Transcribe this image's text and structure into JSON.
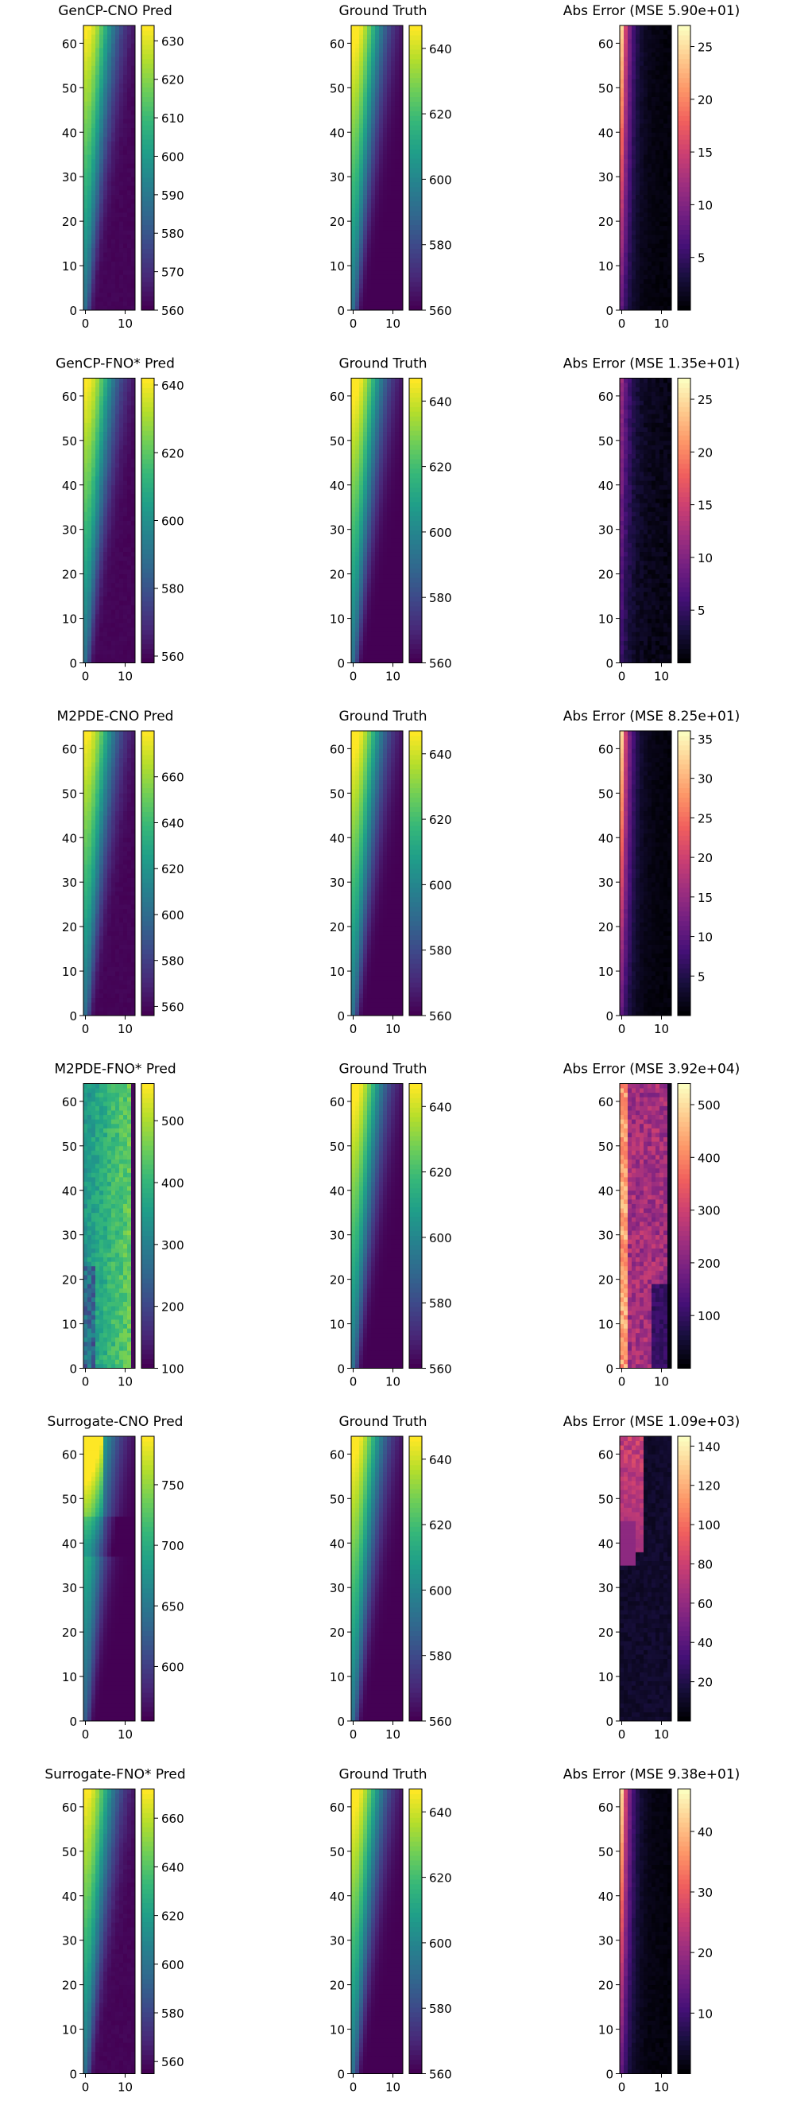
{
  "figure": {
    "colormaps": {
      "viridis": [
        "#440154",
        "#482878",
        "#3e4989",
        "#31688e",
        "#26828e",
        "#1f9e89",
        "#35b779",
        "#6ece58",
        "#b5de2b",
        "#fde725"
      ],
      "magma": [
        "#000004",
        "#180f3e",
        "#451077",
        "#721f81",
        "#9f2f7f",
        "#cd4071",
        "#f1605d",
        "#fd9567",
        "#feca8d",
        "#fcfdbf"
      ]
    }
  },
  "chart_data": [
    {
      "type": "heatmap",
      "title": "GenCP-CNO Pred",
      "cmap": "viridis",
      "xticks": [
        0,
        10
      ],
      "yticks": [
        0,
        10,
        20,
        30,
        40,
        50,
        60
      ],
      "xlim": [
        0,
        13
      ],
      "ylim": [
        0,
        64
      ],
      "cbar_range": [
        560,
        634
      ],
      "cbar_ticks": [
        560,
        570,
        580,
        590,
        600,
        610,
        620,
        630
      ],
      "pattern": "pred"
    },
    {
      "type": "heatmap",
      "title": "Ground Truth",
      "cmap": "viridis",
      "xticks": [
        0,
        10
      ],
      "yticks": [
        0,
        10,
        20,
        30,
        40,
        50,
        60
      ],
      "xlim": [
        0,
        13
      ],
      "ylim": [
        0,
        64
      ],
      "cbar_range": [
        560,
        647
      ],
      "cbar_ticks": [
        560,
        580,
        600,
        620,
        640
      ],
      "pattern": "truth"
    },
    {
      "type": "heatmap",
      "title": "Abs Error (MSE 5.90e+01)",
      "cmap": "magma",
      "xticks": [
        0,
        10
      ],
      "yticks": [
        0,
        10,
        20,
        30,
        40,
        50,
        60
      ],
      "xlim": [
        0,
        13
      ],
      "ylim": [
        0,
        64
      ],
      "cbar_range": [
        0,
        27
      ],
      "cbar_ticks": [
        5,
        10,
        15,
        20,
        25
      ],
      "pattern": "error_left"
    },
    {
      "type": "heatmap",
      "title": "GenCP-FNO* Pred",
      "cmap": "viridis",
      "xticks": [
        0,
        10
      ],
      "yticks": [
        0,
        10,
        20,
        30,
        40,
        50,
        60
      ],
      "xlim": [
        0,
        13
      ],
      "ylim": [
        0,
        64
      ],
      "cbar_range": [
        558,
        642
      ],
      "cbar_ticks": [
        560,
        580,
        600,
        620,
        640
      ],
      "pattern": "pred"
    },
    {
      "type": "heatmap",
      "title": "Ground Truth",
      "cmap": "viridis",
      "xticks": [
        0,
        10
      ],
      "yticks": [
        0,
        10,
        20,
        30,
        40,
        50,
        60
      ],
      "xlim": [
        0,
        13
      ],
      "ylim": [
        0,
        64
      ],
      "cbar_range": [
        560,
        647
      ],
      "cbar_ticks": [
        560,
        580,
        600,
        620,
        640
      ],
      "pattern": "truth"
    },
    {
      "type": "heatmap",
      "title": "Abs Error (MSE 1.35e+01)",
      "cmap": "magma",
      "xticks": [
        0,
        10
      ],
      "yticks": [
        0,
        10,
        20,
        30,
        40,
        50,
        60
      ],
      "xlim": [
        0,
        13
      ],
      "ylim": [
        0,
        64
      ],
      "cbar_range": [
        0,
        27
      ],
      "cbar_ticks": [
        5,
        10,
        15,
        20,
        25
      ],
      "pattern": "error_low"
    },
    {
      "type": "heatmap",
      "title": "M2PDE-CNO Pred",
      "cmap": "viridis",
      "xticks": [
        0,
        10
      ],
      "yticks": [
        0,
        10,
        20,
        30,
        40,
        50,
        60
      ],
      "xlim": [
        0,
        13
      ],
      "ylim": [
        0,
        64
      ],
      "cbar_range": [
        556,
        680
      ],
      "cbar_ticks": [
        560,
        580,
        600,
        620,
        640,
        660
      ],
      "pattern": "pred"
    },
    {
      "type": "heatmap",
      "title": "Ground Truth",
      "cmap": "viridis",
      "xticks": [
        0,
        10
      ],
      "yticks": [
        0,
        10,
        20,
        30,
        40,
        50,
        60
      ],
      "xlim": [
        0,
        13
      ],
      "ylim": [
        0,
        64
      ],
      "cbar_range": [
        560,
        647
      ],
      "cbar_ticks": [
        560,
        580,
        600,
        620,
        640
      ],
      "pattern": "truth"
    },
    {
      "type": "heatmap",
      "title": "Abs Error (MSE 8.25e+01)",
      "cmap": "magma",
      "xticks": [
        0,
        10
      ],
      "yticks": [
        0,
        10,
        20,
        30,
        40,
        50,
        60
      ],
      "xlim": [
        0,
        13
      ],
      "ylim": [
        0,
        64
      ],
      "cbar_range": [
        0,
        36
      ],
      "cbar_ticks": [
        5,
        10,
        15,
        20,
        25,
        30,
        35
      ],
      "pattern": "error_left"
    },
    {
      "type": "heatmap",
      "title": "M2PDE-FNO* Pred",
      "cmap": "viridis",
      "xticks": [
        0,
        10
      ],
      "yticks": [
        0,
        10,
        20,
        30,
        40,
        50,
        60
      ],
      "xlim": [
        0,
        13
      ],
      "ylim": [
        0,
        64
      ],
      "cbar_range": [
        100,
        560
      ],
      "cbar_ticks": [
        100,
        200,
        300,
        400,
        500
      ],
      "pattern": "noisy"
    },
    {
      "type": "heatmap",
      "title": "Ground Truth",
      "cmap": "viridis",
      "xticks": [
        0,
        10
      ],
      "yticks": [
        0,
        10,
        20,
        30,
        40,
        50,
        60
      ],
      "xlim": [
        0,
        13
      ],
      "ylim": [
        0,
        64
      ],
      "cbar_range": [
        560,
        647
      ],
      "cbar_ticks": [
        560,
        580,
        600,
        620,
        640
      ],
      "pattern": "truth"
    },
    {
      "type": "heatmap",
      "title": "Abs Error (MSE 3.92e+04)",
      "cmap": "magma",
      "xticks": [
        0,
        10
      ],
      "yticks": [
        0,
        10,
        20,
        30,
        40,
        50,
        60
      ],
      "xlim": [
        0,
        13
      ],
      "ylim": [
        0,
        64
      ],
      "cbar_range": [
        0,
        540
      ],
      "cbar_ticks": [
        100,
        200,
        300,
        400,
        500
      ],
      "pattern": "error_high"
    },
    {
      "type": "heatmap",
      "title": "Surrogate-CNO Pred",
      "cmap": "viridis",
      "xticks": [
        0,
        10
      ],
      "yticks": [
        0,
        10,
        20,
        30,
        40,
        50,
        60
      ],
      "xlim": [
        0,
        13
      ],
      "ylim": [
        0,
        64
      ],
      "cbar_range": [
        555,
        790
      ],
      "cbar_ticks": [
        600,
        650,
        700,
        750
      ],
      "pattern": "pred_bump"
    },
    {
      "type": "heatmap",
      "title": "Ground Truth",
      "cmap": "viridis",
      "xticks": [
        0,
        10
      ],
      "yticks": [
        0,
        10,
        20,
        30,
        40,
        50,
        60
      ],
      "xlim": [
        0,
        13
      ],
      "ylim": [
        0,
        64
      ],
      "cbar_range": [
        560,
        647
      ],
      "cbar_ticks": [
        560,
        580,
        600,
        620,
        640
      ],
      "pattern": "truth"
    },
    {
      "type": "heatmap",
      "title": "Abs Error (MSE 1.09e+03)",
      "cmap": "magma",
      "xticks": [
        0,
        10
      ],
      "yticks": [
        0,
        10,
        20,
        30,
        40,
        50,
        60
      ],
      "xlim": [
        0,
        13
      ],
      "ylim": [
        0,
        64
      ],
      "cbar_range": [
        0,
        145
      ],
      "cbar_ticks": [
        20,
        40,
        60,
        80,
        100,
        120,
        140
      ],
      "pattern": "error_top"
    },
    {
      "type": "heatmap",
      "title": "Surrogate-FNO* Pred",
      "cmap": "viridis",
      "xticks": [
        0,
        10
      ],
      "yticks": [
        0,
        10,
        20,
        30,
        40,
        50,
        60
      ],
      "xlim": [
        0,
        13
      ],
      "ylim": [
        0,
        64
      ],
      "cbar_range": [
        555,
        672
      ],
      "cbar_ticks": [
        560,
        580,
        600,
        620,
        640,
        660
      ],
      "pattern": "pred"
    },
    {
      "type": "heatmap",
      "title": "Ground Truth",
      "cmap": "viridis",
      "xticks": [
        0,
        10
      ],
      "yticks": [
        0,
        10,
        20,
        30,
        40,
        50,
        60
      ],
      "xlim": [
        0,
        13
      ],
      "ylim": [
        0,
        64
      ],
      "cbar_range": [
        560,
        647
      ],
      "cbar_ticks": [
        560,
        580,
        600,
        620,
        640
      ],
      "pattern": "truth"
    },
    {
      "type": "heatmap",
      "title": "Abs Error (MSE 9.38e+01)",
      "cmap": "magma",
      "xticks": [
        0,
        10
      ],
      "yticks": [
        0,
        10,
        20,
        30,
        40,
        50,
        60
      ],
      "xlim": [
        0,
        13
      ],
      "ylim": [
        0,
        64
      ],
      "cbar_range": [
        0,
        47
      ],
      "cbar_ticks": [
        10,
        20,
        30,
        40
      ],
      "pattern": "error_left"
    }
  ]
}
